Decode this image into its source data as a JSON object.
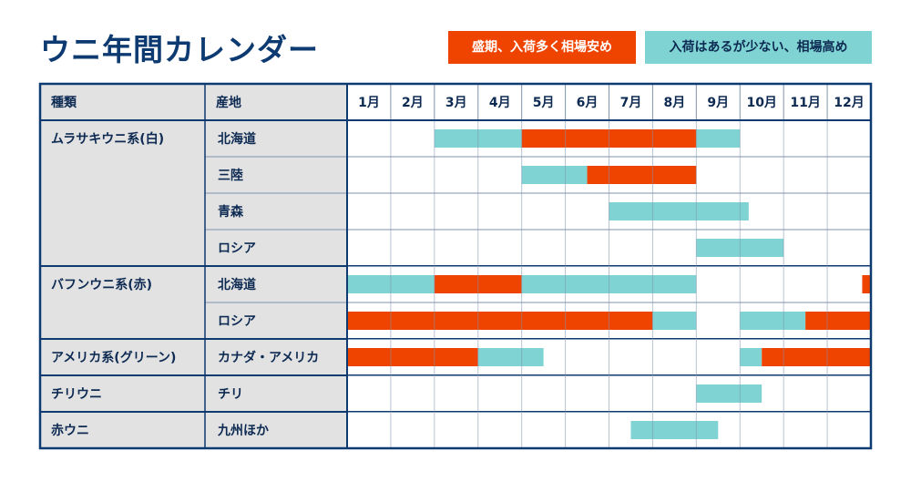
{
  "title": "ウニ年間カレンダー",
  "legend": {
    "peak": {
      "label": "盛期、入荷多く相場安め",
      "color": "#ef4400"
    },
    "arrival": {
      "label": "入荷はあるが少ない、相場高め",
      "color": "#7fd3d3"
    }
  },
  "chart_data": {
    "type": "table",
    "header": {
      "kind": "種類",
      "origin": "産地"
    },
    "months": [
      "1月",
      "2月",
      "3月",
      "4月",
      "5月",
      "6月",
      "7月",
      "8月",
      "9月",
      "10月",
      "11月",
      "12月"
    ],
    "groups": [
      {
        "kind": "ムラサキウニ系(白)",
        "rows": [
          {
            "origin": "北海道",
            "bars": [
              {
                "type": "arrival",
                "start": 3,
                "end": 5
              },
              {
                "type": "peak",
                "start": 5,
                "end": 9
              },
              {
                "type": "arrival",
                "start": 9,
                "end": 10
              }
            ]
          },
          {
            "origin": "三陸",
            "bars": [
              {
                "type": "arrival",
                "start": 5,
                "end": 6.5
              },
              {
                "type": "peak",
                "start": 6.5,
                "end": 9
              }
            ]
          },
          {
            "origin": "青森",
            "bars": [
              {
                "type": "arrival",
                "start": 7,
                "end": 10.2
              }
            ]
          },
          {
            "origin": "ロシア",
            "bars": [
              {
                "type": "arrival",
                "start": 9,
                "end": 11
              }
            ]
          }
        ]
      },
      {
        "kind": "バフンウニ系(赤)",
        "rows": [
          {
            "origin": "北海道",
            "bars": [
              {
                "type": "arrival",
                "start": 1,
                "end": 3
              },
              {
                "type": "peak",
                "start": 3,
                "end": 5
              },
              {
                "type": "arrival",
                "start": 5,
                "end": 9
              },
              {
                "type": "peak",
                "start": 12.8,
                "end": 13
              }
            ]
          },
          {
            "origin": "ロシア",
            "bars": [
              {
                "type": "peak",
                "start": 1,
                "end": 8
              },
              {
                "type": "arrival",
                "start": 8,
                "end": 9
              },
              {
                "type": "arrival",
                "start": 10,
                "end": 11.5
              },
              {
                "type": "peak",
                "start": 11.5,
                "end": 13
              }
            ]
          }
        ]
      },
      {
        "kind": "アメリカ系(グリーン)",
        "rows": [
          {
            "origin": "カナダ・アメリカ",
            "bars": [
              {
                "type": "peak",
                "start": 1,
                "end": 4
              },
              {
                "type": "arrival",
                "start": 4,
                "end": 5.5
              },
              {
                "type": "arrival",
                "start": 10,
                "end": 10.5
              },
              {
                "type": "peak",
                "start": 10.5,
                "end": 13
              }
            ]
          }
        ]
      },
      {
        "kind": "チリウニ",
        "rows": [
          {
            "origin": "チリ",
            "bars": [
              {
                "type": "arrival",
                "start": 9,
                "end": 10.5
              }
            ]
          }
        ]
      },
      {
        "kind": "赤ウニ",
        "rows": [
          {
            "origin": "九州ほか",
            "bars": [
              {
                "type": "arrival",
                "start": 7.5,
                "end": 9.5
              }
            ]
          }
        ]
      }
    ]
  }
}
